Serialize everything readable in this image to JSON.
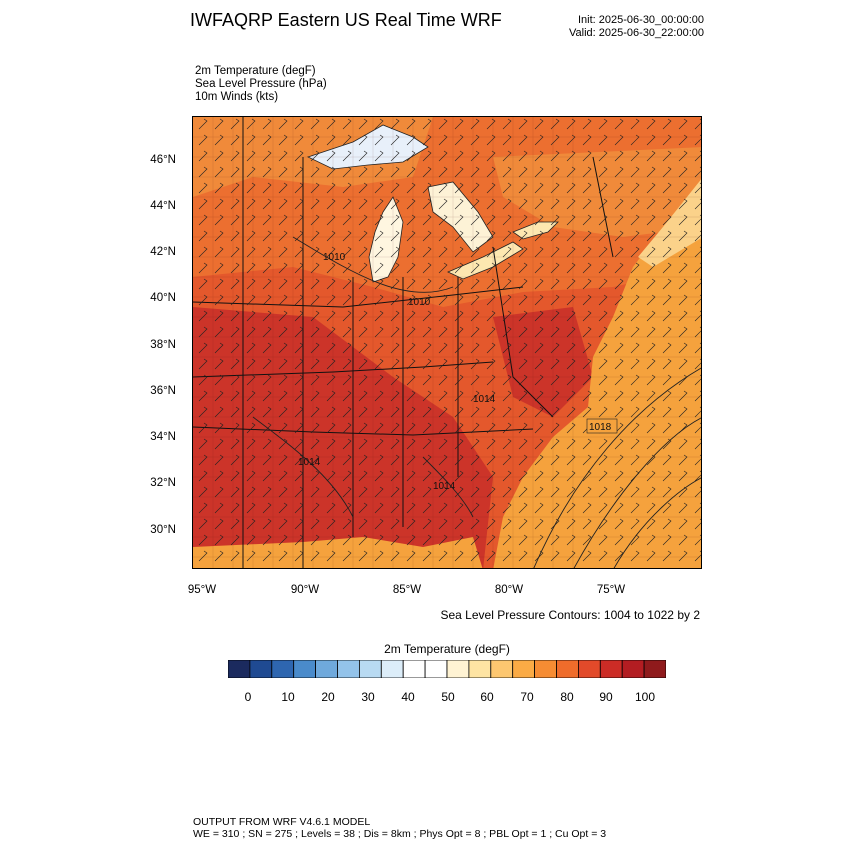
{
  "header": {
    "title": "IWFAQRP Eastern US Real Time WRF",
    "init": "Init: 2025-06-30_00:00:00",
    "valid": "Valid: 2025-06-30_22:00:00"
  },
  "fields": [
    "2m Temperature   (degF)",
    "Sea Level Pressure   (hPa)",
    "10m Winds   (kts)"
  ],
  "map": {
    "lat_labels": [
      "46°N",
      "44°N",
      "42°N",
      "40°N",
      "38°N",
      "36°N",
      "34°N",
      "32°N",
      "30°N"
    ],
    "lon_labels": [
      "95°W",
      "90°W",
      "85°W",
      "80°W",
      "75°W"
    ],
    "pressure_labels": [
      "1010",
      "1010",
      "1014",
      "1014",
      "1018",
      "1014"
    ],
    "colors": {
      "water_atlantic": "#f5a23d",
      "land_warm": "#e4582c",
      "land_hot": "#c9302a",
      "land_cool": "#f08a3a",
      "lake_north": "#e8f0fa",
      "lake_mid": "#fff6e0",
      "lake_erie": "#fde7b0"
    }
  },
  "contour_note": "Sea Level Pressure Contours: 1004 to 1022 by 2",
  "colorbar": {
    "title": "2m Temperature   (degF)",
    "ticks": [
      "0",
      "10",
      "20",
      "30",
      "40",
      "50",
      "60",
      "70",
      "80",
      "90",
      "100"
    ],
    "colors": [
      "#1b2a5e",
      "#1f4a92",
      "#2e66b0",
      "#4a8bcb",
      "#6fa9dc",
      "#93c3ea",
      "#b8daf2",
      "#dcedf9",
      "#ffffff",
      "#ffffff",
      "#fff3d3",
      "#fee4a3",
      "#fdc770",
      "#fbab45",
      "#f68c33",
      "#ef6c2b",
      "#e24a2a",
      "#cc2c26",
      "#b31d22",
      "#8f1a1c"
    ]
  },
  "footer": {
    "line1": "OUTPUT FROM WRF V4.6.1 MODEL",
    "line2": "WE = 310 ; SN = 275 ; Levels = 38 ; Dis = 8km ; Phys Opt = 8 ; PBL Opt = 1 ; Cu Opt = 3"
  }
}
